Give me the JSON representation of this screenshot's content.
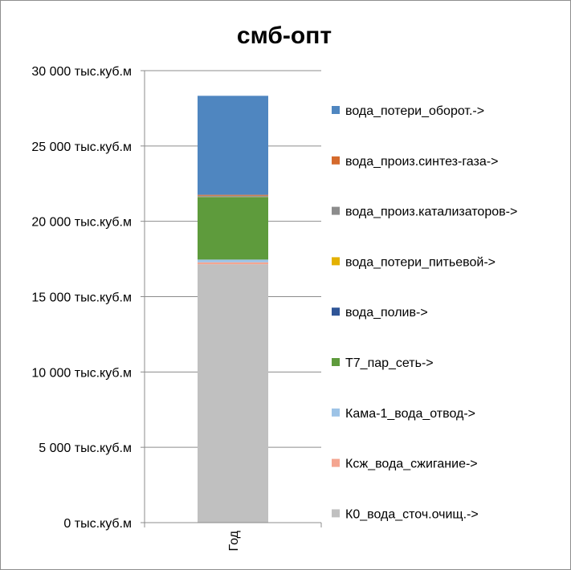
{
  "chart_data": {
    "type": "bar",
    "stacked": true,
    "title": "смб-опт",
    "categories": [
      "Год"
    ],
    "ylim": [
      0,
      30000
    ],
    "yticks": [
      0,
      5000,
      10000,
      15000,
      20000,
      25000,
      30000
    ],
    "ytick_labels": [
      "0 тыс.куб.м",
      "5 000 тыс.куб.м",
      "10 000 тыс.куб.м",
      "15 000 тыс.куб.м",
      "20 000 тыс.куб.м",
      "25 000 тыс.куб.м",
      "30 000 тыс.куб.м"
    ],
    "grid": true,
    "legend_position": "right",
    "series": [
      {
        "name": "К0_вода_сточ.очищ.->",
        "values": [
          17150
        ],
        "color": "#c0c0c0"
      },
      {
        "name": "Ксж_вода_сжигание->",
        "values": [
          130
        ],
        "color": "#f4a590"
      },
      {
        "name": "Кама-1_вода_отвод->",
        "values": [
          180
        ],
        "color": "#9dc3e6"
      },
      {
        "name": "Т7_пар_сеть->",
        "values": [
          4140
        ],
        "color": "#5e9b3c"
      },
      {
        "name": "вода_полив->",
        "values": [
          20
        ],
        "color": "#2f5597"
      },
      {
        "name": "вода_потери_питьевой->",
        "values": [
          20
        ],
        "color": "#e4b100"
      },
      {
        "name": "вода_произ.катализаторов->",
        "values": [
          60
        ],
        "color": "#8c8c8c"
      },
      {
        "name": "вода_произ.синтез-газа->",
        "values": [
          60
        ],
        "color": "#d56a2c"
      },
      {
        "name": "вода_потери_оборот.->",
        "values": [
          6570
        ],
        "color": "#4f86c0"
      }
    ]
  }
}
